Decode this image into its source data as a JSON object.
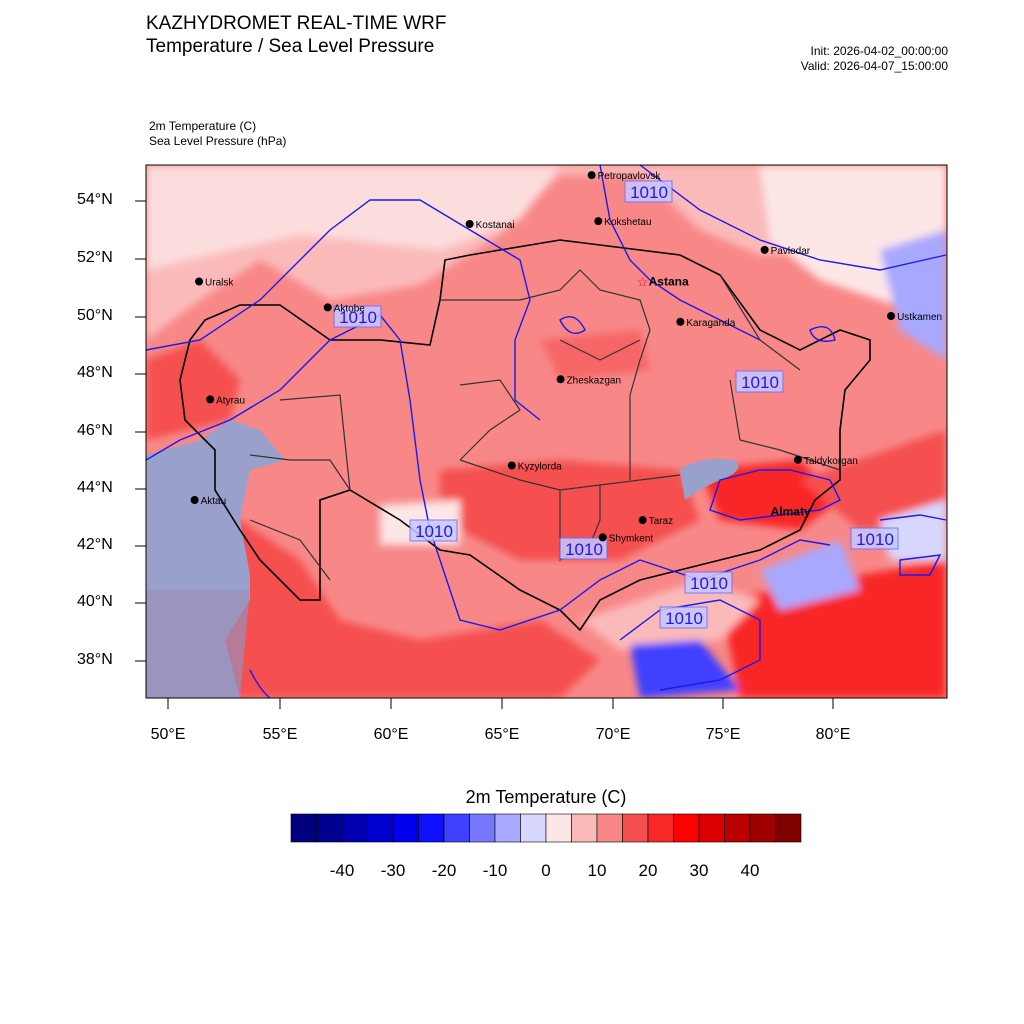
{
  "header": {
    "title": "KAZHYDROMET REAL-TIME WRF",
    "subtitle": "Temperature / Sea Level Pressure",
    "init": "Init: 2026-04-02_00:00:00",
    "valid": "Valid: 2026-04-07_15:00:00"
  },
  "fields": {
    "field1": "2m Temperature   (C)",
    "field2": "Sea Level Pressure   (hPa)"
  },
  "axes": {
    "lat_labels": [
      "54°N",
      "52°N",
      "50°N",
      "48°N",
      "46°N",
      "44°N",
      "42°N",
      "40°N",
      "38°N"
    ],
    "lon_labels": [
      "50°E",
      "55°E",
      "60°E",
      "65°E",
      "70°E",
      "75°E",
      "80°E"
    ]
  },
  "contour_label": "1010",
  "cities": [
    {
      "name": "Petropavlovsk",
      "lon": 69.1,
      "lat": 54.9,
      "capital": false
    },
    {
      "name": "Kostanai",
      "lon": 63.6,
      "lat": 53.2,
      "capital": false
    },
    {
      "name": "Kokshetau",
      "lon": 69.4,
      "lat": 53.3,
      "capital": false
    },
    {
      "name": "Uralsk",
      "lon": 51.4,
      "lat": 51.2,
      "capital": false
    },
    {
      "name": "Pavlodar",
      "lon": 76.9,
      "lat": 52.3,
      "capital": false
    },
    {
      "name": "Astana",
      "lon": 71.4,
      "lat": 51.2,
      "capital": true
    },
    {
      "name": "Aktobe",
      "lon": 57.2,
      "lat": 50.3,
      "capital": false
    },
    {
      "name": "Ustkamen",
      "lon": 82.6,
      "lat": 50.0,
      "capital": false
    },
    {
      "name": "Karaganda",
      "lon": 73.1,
      "lat": 49.8,
      "capital": false
    },
    {
      "name": "Atyrau",
      "lon": 51.9,
      "lat": 47.1,
      "capital": false
    },
    {
      "name": "Zheskazgan",
      "lon": 67.7,
      "lat": 47.8,
      "capital": false
    },
    {
      "name": "Taldykorgan",
      "lon": 78.4,
      "lat": 45.0,
      "capital": false
    },
    {
      "name": "Kyzylorda",
      "lon": 65.5,
      "lat": 44.8,
      "capital": false
    },
    {
      "name": "Aktau",
      "lon": 51.2,
      "lat": 43.6,
      "capital": false
    },
    {
      "name": "Almaty",
      "lon": 76.9,
      "lat": 43.2,
      "capital": true
    },
    {
      "name": "Taraz",
      "lon": 71.4,
      "lat": 42.9,
      "capital": false
    },
    {
      "name": "Shymkent",
      "lon": 69.6,
      "lat": 42.3,
      "capital": false
    }
  ],
  "colorbar": {
    "title": "2m Temperature  (C)",
    "labels": [
      "-40",
      "-30",
      "-20",
      "-10",
      "0",
      "10",
      "20",
      "30",
      "40"
    ],
    "colors": [
      "#00007f",
      "#00008f",
      "#0000b0",
      "#0000d0",
      "#0000f0",
      "#1010ff",
      "#4040ff",
      "#7878ff",
      "#a8a8ff",
      "#d8d8ff",
      "#fde6e6",
      "#fbbaba",
      "#f88888",
      "#f55050",
      "#f82828",
      "#ff0000",
      "#dd0000",
      "#bb0000",
      "#a00000",
      "#800000"
    ]
  }
}
